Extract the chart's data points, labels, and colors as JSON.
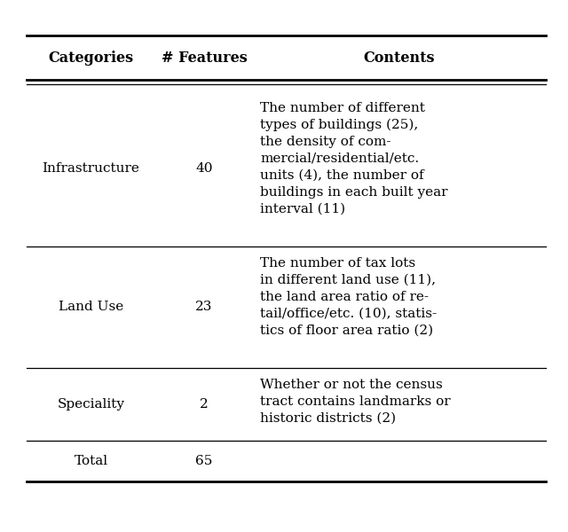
{
  "headers": [
    "Categories",
    "# Features",
    "Contents"
  ],
  "rows": [
    {
      "category": "Infrastructure",
      "features": "40"
    },
    {
      "category": "Land Use",
      "features": "23"
    },
    {
      "category": "Speciality",
      "features": "2"
    },
    {
      "category": "Total",
      "features": "65"
    }
  ],
  "contents_lines": [
    [
      "The number of different",
      "types of buildings (25),",
      "the density of com-",
      "mercial/residential/etc.",
      "units (4), the number of",
      "buildings in each built year",
      "interval (11)"
    ],
    [
      "The number of tax lots",
      "in different land use (11),",
      "the land area ratio of re-",
      "tail/office/etc. (10), statis-",
      "tics of floor area ratio (2)"
    ],
    [
      "Whether or not the census",
      "tract contains landmarks or",
      "historic districts (2)"
    ],
    []
  ],
  "background_color": "#ffffff",
  "line_color": "#000000",
  "header_fontsize": 11.5,
  "body_fontsize": 11.0,
  "fig_width": 6.4,
  "fig_height": 6.0
}
